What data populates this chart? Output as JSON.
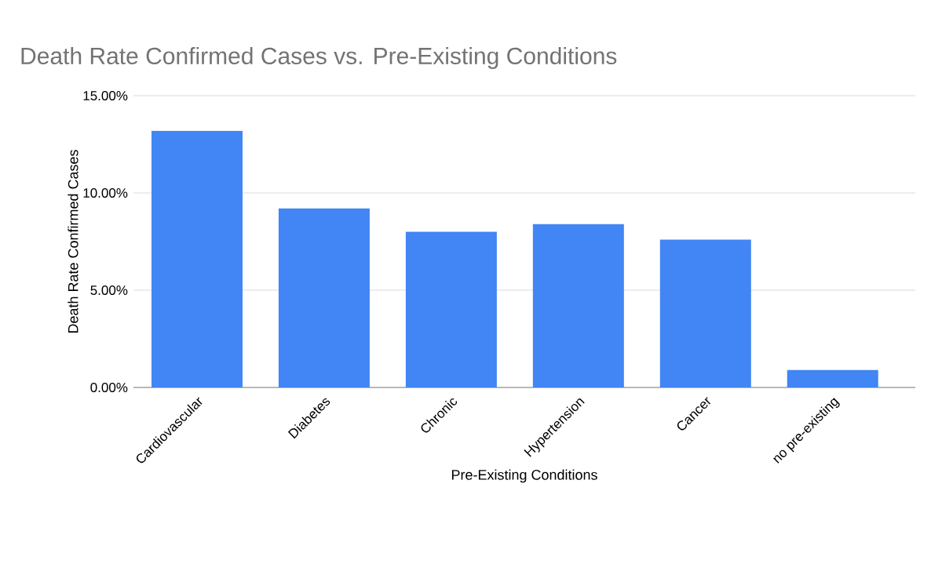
{
  "chart_data": {
    "type": "bar",
    "title": "Death Rate Confirmed Cases vs. Pre-Existing Conditions",
    "xlabel": "Pre-Existing Conditions",
    "ylabel": "Death Rate Confirmed Cases",
    "categories": [
      "Cardiovascular",
      "Diabetes",
      "Chronic",
      "Hypertension",
      "Cancer",
      "no pre-existing"
    ],
    "values": [
      13.2,
      9.2,
      8.0,
      8.4,
      7.6,
      0.9
    ],
    "color": "#4285f4",
    "ylim": [
      0,
      15
    ],
    "yticks": [
      {
        "value": 0,
        "label": "0.00%"
      },
      {
        "value": 5,
        "label": "5.00%"
      },
      {
        "value": 10,
        "label": "10.00%"
      },
      {
        "value": 15,
        "label": "15.00%"
      }
    ],
    "grid": "y"
  }
}
